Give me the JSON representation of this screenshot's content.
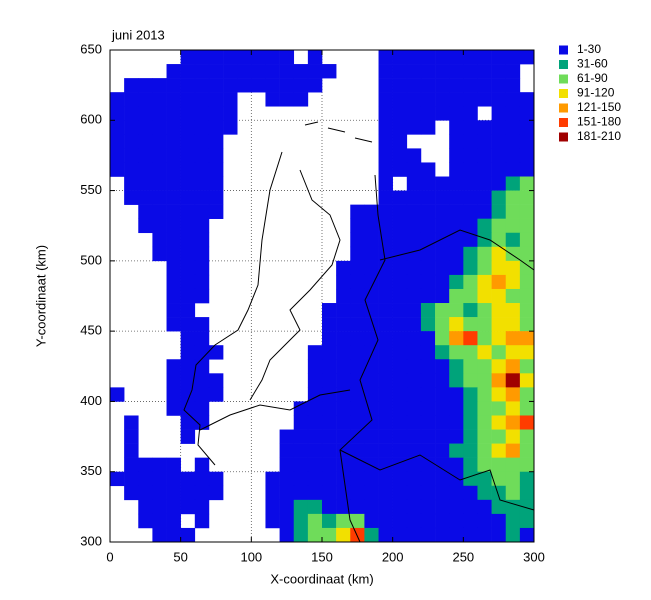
{
  "chart_data": {
    "type": "heatmap",
    "title": "juni 2013",
    "x_label": "X-coordinaat (km)",
    "y_label": "Y-coordinaat (km)",
    "xlim": [
      0,
      300
    ],
    "ylim": [
      300,
      650
    ],
    "xticks": [
      0,
      50,
      100,
      150,
      200,
      250,
      300
    ],
    "yticks": [
      300,
      350,
      400,
      450,
      500,
      550,
      600,
      650
    ],
    "grid": true,
    "legend": [
      "1-30",
      "31-60",
      "61-90",
      "91-120",
      "121-150",
      "151-180",
      "181-210"
    ],
    "colors": [
      "#0a0ae6",
      "#00a37a",
      "#6fdc5a",
      "#f2e000",
      "#ff9a00",
      "#ff3c00",
      "#a00000"
    ],
    "values": [
      [
        0,
        0,
        0,
        0,
        0,
        1,
        1,
        1,
        1,
        1,
        1,
        1,
        1,
        0,
        1,
        0,
        0,
        0,
        0,
        1,
        1,
        1,
        1,
        1,
        1,
        1,
        1,
        1,
        1,
        1
      ],
      [
        0,
        0,
        0,
        0,
        1,
        1,
        1,
        1,
        1,
        1,
        1,
        1,
        1,
        1,
        1,
        1,
        0,
        0,
        0,
        1,
        1,
        1,
        1,
        1,
        1,
        1,
        1,
        1,
        1,
        0
      ],
      [
        0,
        1,
        1,
        1,
        1,
        1,
        1,
        1,
        1,
        1,
        1,
        1,
        1,
        1,
        1,
        0,
        0,
        0,
        0,
        1,
        1,
        1,
        1,
        1,
        1,
        1,
        1,
        1,
        1,
        0
      ],
      [
        1,
        1,
        1,
        1,
        1,
        1,
        1,
        1,
        1,
        0,
        0,
        1,
        1,
        1,
        0,
        0,
        0,
        0,
        0,
        1,
        1,
        1,
        1,
        1,
        1,
        1,
        1,
        1,
        1,
        1
      ],
      [
        1,
        1,
        1,
        1,
        1,
        1,
        1,
        1,
        1,
        0,
        0,
        0,
        0,
        0,
        0,
        0,
        0,
        0,
        0,
        1,
        1,
        1,
        1,
        1,
        1,
        1,
        0,
        1,
        1,
        1
      ],
      [
        1,
        1,
        1,
        1,
        1,
        1,
        1,
        1,
        1,
        0,
        0,
        0,
        0,
        0,
        0,
        0,
        0,
        0,
        0,
        1,
        1,
        1,
        1,
        0,
        1,
        1,
        1,
        1,
        1,
        1
      ],
      [
        1,
        1,
        1,
        1,
        1,
        1,
        1,
        1,
        0,
        0,
        0,
        0,
        0,
        0,
        0,
        0,
        0,
        0,
        0,
        1,
        1,
        0,
        0,
        0,
        1,
        1,
        1,
        1,
        1,
        1
      ],
      [
        1,
        1,
        1,
        1,
        1,
        1,
        1,
        1,
        0,
        0,
        0,
        0,
        0,
        0,
        0,
        0,
        0,
        0,
        0,
        1,
        1,
        1,
        0,
        0,
        1,
        1,
        1,
        1,
        1,
        1
      ],
      [
        1,
        1,
        1,
        1,
        1,
        1,
        1,
        1,
        0,
        0,
        0,
        0,
        0,
        0,
        0,
        0,
        0,
        0,
        0,
        1,
        1,
        1,
        1,
        0,
        1,
        1,
        1,
        1,
        1,
        1
      ],
      [
        0,
        1,
        1,
        1,
        1,
        1,
        1,
        1,
        0,
        0,
        0,
        0,
        0,
        0,
        0,
        0,
        0,
        0,
        0,
        1,
        0,
        1,
        1,
        1,
        1,
        1,
        1,
        1,
        2,
        3
      ],
      [
        0,
        1,
        1,
        1,
        1,
        1,
        1,
        1,
        0,
        0,
        0,
        0,
        0,
        0,
        0,
        0,
        0,
        0,
        0,
        1,
        1,
        1,
        1,
        1,
        1,
        1,
        1,
        2,
        3,
        3
      ],
      [
        0,
        0,
        1,
        1,
        1,
        1,
        1,
        1,
        0,
        0,
        0,
        0,
        0,
        0,
        0,
        0,
        0,
        1,
        1,
        1,
        1,
        1,
        1,
        1,
        1,
        1,
        1,
        2,
        3,
        3
      ],
      [
        0,
        0,
        1,
        1,
        1,
        1,
        1,
        0,
        0,
        0,
        0,
        0,
        0,
        0,
        0,
        0,
        0,
        1,
        1,
        1,
        1,
        1,
        1,
        1,
        1,
        1,
        2,
        3,
        3,
        3
      ],
      [
        0,
        0,
        0,
        1,
        1,
        1,
        1,
        0,
        0,
        0,
        0,
        0,
        0,
        0,
        0,
        0,
        0,
        1,
        1,
        1,
        1,
        1,
        1,
        1,
        1,
        1,
        2,
        3,
        2,
        3
      ],
      [
        0,
        0,
        0,
        1,
        1,
        1,
        1,
        0,
        0,
        0,
        0,
        0,
        0,
        0,
        0,
        0,
        0,
        1,
        1,
        1,
        1,
        1,
        1,
        1,
        1,
        2,
        3,
        4,
        3,
        3
      ],
      [
        0,
        0,
        0,
        0,
        1,
        1,
        1,
        0,
        0,
        0,
        0,
        0,
        0,
        0,
        0,
        0,
        1,
        1,
        1,
        1,
        1,
        1,
        1,
        1,
        1,
        2,
        3,
        4,
        4,
        3
      ],
      [
        0,
        0,
        0,
        0,
        1,
        1,
        1,
        0,
        0,
        0,
        0,
        0,
        0,
        0,
        0,
        0,
        1,
        1,
        1,
        1,
        1,
        1,
        1,
        1,
        2,
        3,
        4,
        5,
        4,
        3
      ],
      [
        0,
        0,
        0,
        0,
        1,
        1,
        1,
        0,
        0,
        0,
        0,
        0,
        0,
        0,
        0,
        0,
        1,
        1,
        1,
        1,
        1,
        1,
        1,
        1,
        3,
        3,
        4,
        4,
        3,
        3
      ],
      [
        0,
        0,
        0,
        0,
        1,
        1,
        0,
        0,
        0,
        0,
        0,
        0,
        0,
        0,
        0,
        1,
        1,
        1,
        1,
        1,
        1,
        1,
        2,
        3,
        3,
        2,
        3,
        4,
        4,
        3
      ],
      [
        0,
        0,
        0,
        0,
        1,
        1,
        1,
        0,
        0,
        0,
        0,
        0,
        0,
        0,
        0,
        1,
        1,
        1,
        1,
        1,
        1,
        1,
        2,
        3,
        4,
        3,
        3,
        4,
        4,
        3
      ],
      [
        0,
        0,
        0,
        0,
        0,
        1,
        1,
        0,
        0,
        0,
        0,
        0,
        0,
        0,
        0,
        1,
        1,
        1,
        1,
        1,
        1,
        1,
        1,
        3,
        5,
        6,
        3,
        4,
        5,
        5
      ],
      [
        0,
        0,
        0,
        0,
        0,
        1,
        1,
        1,
        0,
        0,
        0,
        0,
        0,
        0,
        1,
        1,
        1,
        1,
        1,
        1,
        1,
        1,
        1,
        2,
        3,
        3,
        4,
        3,
        4,
        4
      ],
      [
        0,
        0,
        0,
        0,
        1,
        1,
        1,
        0,
        0,
        0,
        0,
        0,
        0,
        0,
        1,
        1,
        1,
        1,
        1,
        1,
        1,
        1,
        1,
        1,
        2,
        3,
        3,
        4,
        5,
        3
      ],
      [
        0,
        0,
        0,
        0,
        1,
        1,
        1,
        1,
        0,
        0,
        0,
        0,
        0,
        0,
        1,
        1,
        1,
        1,
        1,
        1,
        1,
        1,
        1,
        1,
        2,
        3,
        3,
        5,
        7,
        4
      ],
      [
        1,
        0,
        0,
        0,
        1,
        1,
        1,
        1,
        0,
        0,
        0,
        0,
        0,
        0,
        1,
        1,
        1,
        1,
        1,
        1,
        1,
        1,
        1,
        1,
        1,
        2,
        3,
        4,
        5,
        3
      ],
      [
        0,
        0,
        0,
        0,
        1,
        1,
        1,
        0,
        0,
        0,
        0,
        0,
        0,
        1,
        1,
        1,
        1,
        1,
        1,
        1,
        1,
        1,
        1,
        1,
        1,
        2,
        3,
        3,
        4,
        3
      ],
      [
        0,
        1,
        0,
        0,
        0,
        1,
        1,
        0,
        0,
        0,
        0,
        0,
        0,
        1,
        1,
        1,
        1,
        1,
        1,
        1,
        1,
        1,
        1,
        1,
        1,
        2,
        3,
        4,
        5,
        6
      ],
      [
        0,
        1,
        0,
        0,
        0,
        1,
        0,
        0,
        0,
        0,
        0,
        0,
        1,
        1,
        1,
        1,
        1,
        1,
        1,
        1,
        1,
        1,
        1,
        1,
        1,
        2,
        3,
        3,
        4,
        3
      ],
      [
        0,
        1,
        0,
        0,
        0,
        0,
        0,
        0,
        0,
        0,
        0,
        0,
        1,
        1,
        1,
        1,
        1,
        1,
        1,
        1,
        1,
        1,
        1,
        1,
        2,
        2,
        3,
        4,
        5,
        3
      ],
      [
        0,
        1,
        1,
        1,
        1,
        0,
        1,
        0,
        0,
        0,
        0,
        0,
        1,
        1,
        1,
        1,
        1,
        1,
        1,
        1,
        1,
        1,
        1,
        1,
        1,
        2,
        3,
        3,
        3,
        3
      ],
      [
        1,
        1,
        1,
        1,
        1,
        1,
        1,
        1,
        0,
        0,
        0,
        1,
        1,
        1,
        1,
        1,
        1,
        1,
        1,
        1,
        1,
        1,
        1,
        1,
        1,
        2,
        2,
        3,
        3,
        2
      ],
      [
        0,
        1,
        1,
        1,
        1,
        1,
        1,
        1,
        0,
        0,
        0,
        1,
        1,
        1,
        1,
        1,
        1,
        1,
        1,
        1,
        1,
        1,
        1,
        1,
        1,
        1,
        2,
        2,
        3,
        2
      ],
      [
        0,
        0,
        1,
        1,
        1,
        1,
        1,
        0,
        0,
        0,
        0,
        1,
        1,
        2,
        2,
        1,
        1,
        1,
        1,
        1,
        1,
        1,
        1,
        1,
        1,
        1,
        1,
        2,
        2,
        2
      ],
      [
        0,
        0,
        1,
        1,
        1,
        0,
        1,
        0,
        0,
        0,
        0,
        1,
        1,
        2,
        3,
        2,
        3,
        3,
        1,
        1,
        1,
        1,
        1,
        1,
        1,
        1,
        1,
        1,
        2,
        2
      ],
      [
        0,
        0,
        0,
        1,
        1,
        1,
        0,
        0,
        0,
        0,
        0,
        0,
        1,
        2,
        3,
        3,
        4,
        6,
        2,
        1,
        1,
        1,
        1,
        1,
        1,
        1,
        1,
        1,
        2,
        1
      ]
    ]
  }
}
